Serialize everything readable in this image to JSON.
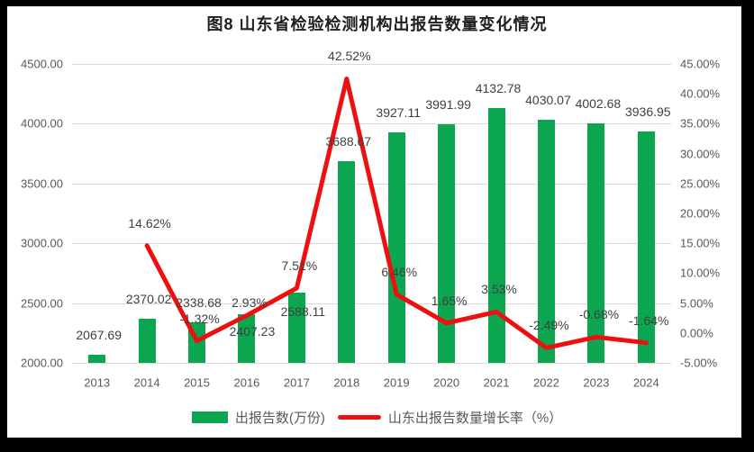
{
  "title": "图8  山东省检验检测机构出报告数量变化情况",
  "colors": {
    "bar": "#0ba64f",
    "line": "#ee1010",
    "grid": "#d9d9d9",
    "axis_text": "#595959",
    "label_text": "#404040",
    "frame": "#000000",
    "background": "#ffffff"
  },
  "legend": {
    "items": [
      {
        "label": "出报告数(万份)",
        "type": "bar"
      },
      {
        "label": "山东出报告数量增长率（%）",
        "type": "line"
      }
    ]
  },
  "chart_data": {
    "type": "bar+line combo",
    "title": "图8  山东省检验检测机构出报告数量变化情况",
    "categories": [
      "2013",
      "2014",
      "2015",
      "2016",
      "2017",
      "2018",
      "2019",
      "2020",
      "2021",
      "2022",
      "2023",
      "2024"
    ],
    "series": [
      {
        "name": "出报告数(万份)",
        "type": "bar",
        "axis": "left",
        "values": [
          2067.69,
          2370.02,
          2338.68,
          2407.23,
          2588.11,
          3688.67,
          3927.11,
          3991.99,
          4132.78,
          4030.07,
          4002.68,
          3936.95
        ],
        "labels": [
          "2067.69",
          "2370.02",
          "2338.68",
          "2407.23",
          "2588.11",
          "3688.67",
          "3927.11",
          "3991.99",
          "4132.78",
          "4030.07",
          "4002.68",
          "3936.95"
        ]
      },
      {
        "name": "山东出报告数量增长率（%）",
        "type": "line",
        "axis": "right",
        "values": [
          null,
          14.62,
          -1.32,
          2.93,
          7.51,
          42.52,
          6.46,
          1.65,
          3.53,
          -2.49,
          -0.68,
          -1.64
        ],
        "labels": [
          null,
          "14.62%",
          "-1.32%",
          "2.93%",
          "7.51%",
          "42.52%",
          "6.46%",
          "1.65%",
          "3.53%",
          "-2.49%",
          "-0.68%",
          "-1.64%"
        ]
      }
    ],
    "left_axis": {
      "min": 2000,
      "max": 4500,
      "step": 500,
      "tick_labels": [
        "2000.00",
        "2500.00",
        "3000.00",
        "3500.00",
        "4000.00",
        "4500.00"
      ]
    },
    "right_axis": {
      "min": -5,
      "max": 45,
      "step": 5,
      "tick_labels": [
        "-5.00%",
        "0.00%",
        "5.00%",
        "10.00%",
        "15.00%",
        "20.00%",
        "25.00%",
        "30.00%",
        "35.00%",
        "40.00%",
        "45.00%"
      ]
    },
    "grid": true,
    "legend_position": "bottom"
  }
}
